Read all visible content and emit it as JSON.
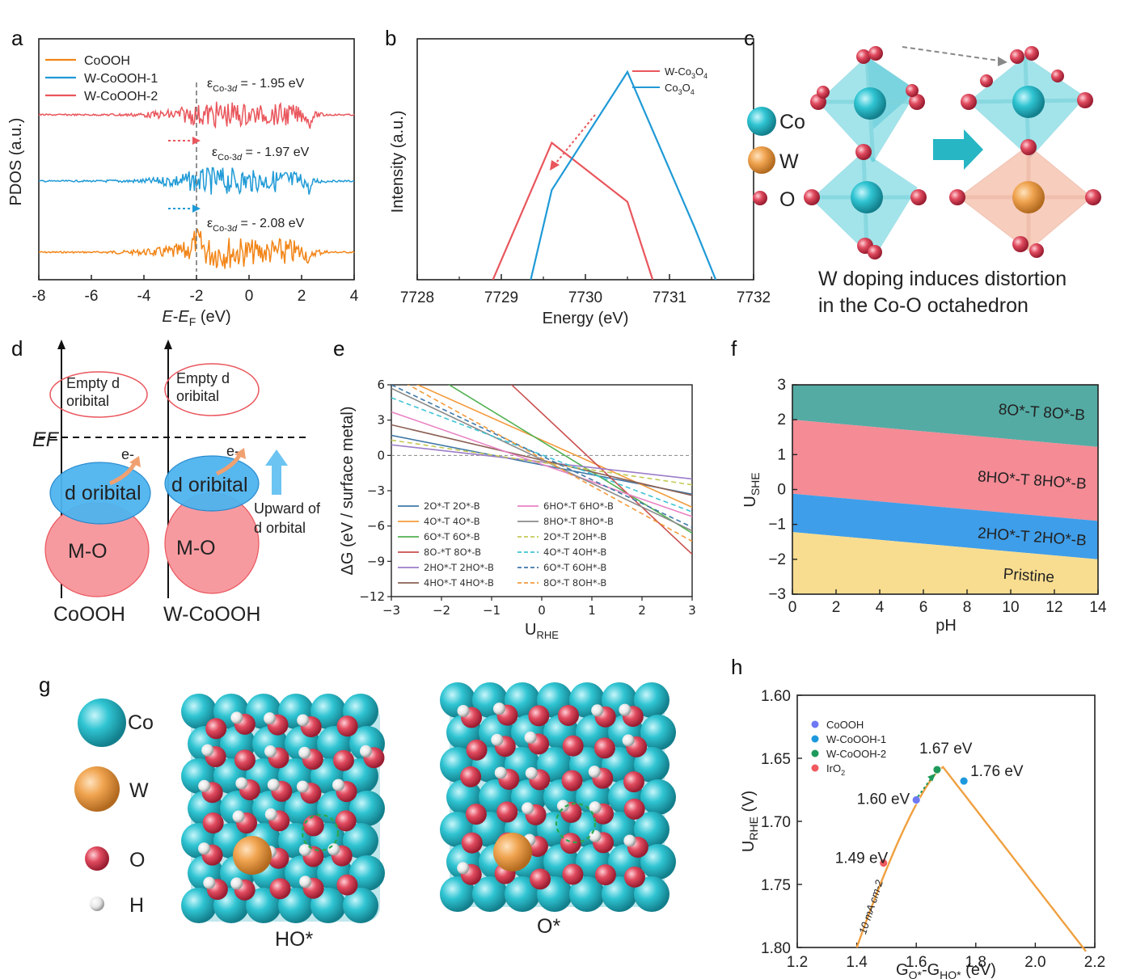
{
  "figure": {
    "panel_labels": [
      "a",
      "b",
      "c",
      "d",
      "e",
      "f",
      "g",
      "h"
    ]
  },
  "chart_data": [
    {
      "panel": "a",
      "type": "line",
      "ylabel": "PDOS (a.u.)",
      "xlabel": "E-EF (eV)",
      "xlim": [
        -8,
        4
      ],
      "xticks": [
        "-8",
        "-6",
        "-4",
        "-2",
        "0",
        "2",
        "4"
      ],
      "series": [
        {
          "name": "CoOOH",
          "color": "#f28518",
          "d_band_center_label": "εCo-3d = - 2.08 eV",
          "d_band_center": -2.08
        },
        {
          "name": "W-CoOOH-1",
          "color": "#1f9ad6",
          "d_band_center_label": "εCo-3d = - 1.97 eV",
          "d_band_center": -1.97
        },
        {
          "name": "W-CoOOH-2",
          "color": "#e9565c",
          "d_band_center_label": "εCo-3d = - 1.95 eV",
          "d_band_center": -1.95
        }
      ],
      "annotations": {
        "ref_line_x": -2
      }
    },
    {
      "panel": "b",
      "type": "line",
      "ylabel": "Intensity (a.u.)",
      "xlabel": "Energy (eV)",
      "xlim": [
        7728,
        7732
      ],
      "xticks": [
        "7728",
        "7729",
        "7730",
        "7731",
        "7732"
      ],
      "series": [
        {
          "name": "W-Co3O4",
          "color": "#e9565c",
          "x": [
            7728.9,
            7729.6,
            7730.5,
            7730.8
          ],
          "y": [
            0.0,
            0.58,
            0.33,
            0.0
          ]
        },
        {
          "name": "Co3O4",
          "color": "#1f9ad6",
          "x": [
            7729.35,
            7729.6,
            7730.5,
            7731.3,
            7731.55
          ],
          "y": [
            0.0,
            0.38,
            0.88,
            0.22,
            -0.05
          ]
        }
      ]
    },
    {
      "panel": "e",
      "type": "line",
      "ylabel": "ΔG (eV / surface metal)",
      "xlabel": "URHE",
      "xlim": [
        -3,
        3
      ],
      "ylim": [
        -12,
        6
      ],
      "xticks": [
        "−3",
        "−2",
        "−1",
        "0",
        "1",
        "2",
        "3"
      ],
      "yticks": [
        "−12",
        "−9",
        "−6",
        "−3",
        "0",
        "3",
        "6"
      ],
      "series": [
        {
          "name": "2O*-T 2O*-B",
          "color": "#3f78a8",
          "dash": false,
          "x": [
            -3,
            3
          ],
          "y": [
            1.7,
            -3.3
          ]
        },
        {
          "name": "4O*-T 4O*-B",
          "color": "#f39b3c",
          "dash": false,
          "x": [
            -3,
            3
          ],
          "y": [
            7.0,
            -4.4
          ]
        },
        {
          "name": "6O*-T 6O*-B",
          "color": "#52b152",
          "dash": false,
          "x": [
            -3,
            3
          ],
          "y": [
            9.0,
            -6.6
          ]
        },
        {
          "name": "8O-*T 8O*-B",
          "color": "#c9504f",
          "dash": false,
          "x": [
            -3,
            3
          ],
          "y": [
            15.6,
            -8.4
          ]
        },
        {
          "name": "2HO*-T 2HO*-B",
          "color": "#9c7cc8",
          "dash": false,
          "x": [
            -3,
            3
          ],
          "y": [
            0.9,
            -2.0
          ]
        },
        {
          "name": "4HO*-T 4HO*-B",
          "color": "#8c6054",
          "dash": false,
          "x": [
            -3,
            3
          ],
          "y": [
            2.6,
            -3.4
          ]
        },
        {
          "name": "6HO*-T 6HO*-B",
          "color": "#e982c4",
          "dash": false,
          "x": [
            -3,
            3
          ],
          "y": [
            3.7,
            -5.2
          ]
        },
        {
          "name": "8HO*-T 8HO*-B",
          "color": "#8a8a8a",
          "dash": false,
          "x": [
            -3,
            3
          ],
          "y": [
            5.7,
            -6.4
          ]
        },
        {
          "name": "2O*-T 2OH*-B",
          "color": "#c4c956",
          "dash": true,
          "x": [
            -3,
            3
          ],
          "y": [
            1.3,
            -2.5
          ]
        },
        {
          "name": "4O*-T 4OH*-B",
          "color": "#40c4d4",
          "dash": true,
          "x": [
            -3,
            3
          ],
          "y": [
            4.9,
            -4.8
          ]
        },
        {
          "name": "6O*-T 6OH*-B",
          "color": "#3f78a8",
          "dash": true,
          "x": [
            -3,
            3
          ],
          "y": [
            6.0,
            -6.1
          ]
        },
        {
          "name": "8O*-T 8OH*-B",
          "color": "#f39b3c",
          "dash": true,
          "x": [
            -3,
            3
          ],
          "y": [
            6.8,
            -7.3
          ]
        }
      ]
    },
    {
      "panel": "f",
      "type": "area",
      "ylabel": "USHE",
      "xlabel": "pH",
      "xlim": [
        0,
        14
      ],
      "ylim": [
        -3,
        3
      ],
      "xticks": [
        "0",
        "2",
        "4",
        "6",
        "8",
        "10",
        "12",
        "14"
      ],
      "yticks": [
        "−3",
        "−2",
        "−1",
        "0",
        "1",
        "2",
        "3"
      ],
      "regions": [
        {
          "name": "8O*-T 8O*-B",
          "color": "#54aba4"
        },
        {
          "name": "8HO*-T 8HO*-B",
          "color": "#f48b95"
        },
        {
          "name": "2HO*-T 2HO*-B",
          "color": "#3f9ee9"
        },
        {
          "name": "Pristine",
          "color": "#f8dd90"
        }
      ],
      "boundaries": [
        {
          "y_at_pH0": 2.0,
          "y_at_pH14": 1.22
        },
        {
          "y_at_pH0": -0.12,
          "y_at_pH14": -0.9
        },
        {
          "y_at_pH0": -1.22,
          "y_at_pH14": -2.0
        }
      ]
    },
    {
      "panel": "h",
      "type": "scatter",
      "ylabel": "URHE (V)",
      "xlabel": "GO*-GHO* (eV)",
      "xlim": [
        1.2,
        2.2
      ],
      "ylim": [
        1.6,
        1.8
      ],
      "y_inverted": true,
      "xticks": [
        "1.2",
        "1.4",
        "1.6",
        "1.8",
        "2.0",
        "2.2"
      ],
      "yticks": [
        "1.60",
        "1.65",
        "1.70",
        "1.75",
        "1.80"
      ],
      "curve_label": "10 mA cm-2",
      "points": [
        {
          "name": "CoOOH",
          "color": "#6f78f2",
          "x": 1.6,
          "y": 1.683,
          "label": "1.60 eV"
        },
        {
          "name": "W-CoOOH-1",
          "color": "#1e98dd",
          "x": 1.76,
          "y": 1.668,
          "label": "1.76 eV"
        },
        {
          "name": "W-CoOOH-2",
          "color": "#1d9a5b",
          "x": 1.67,
          "y": 1.659,
          "label": "1.67 eV"
        },
        {
          "name": "IrO2",
          "color": "#ef5a5e",
          "x": 1.49,
          "y": 1.733,
          "label": "1.49 eV"
        }
      ]
    }
  ],
  "panel_c": {
    "legend": [
      "Co",
      "W",
      "O"
    ],
    "caption_line1": "W doping induces distortion",
    "caption_line2": "in the Co-O octahedron"
  },
  "panel_d": {
    "ef_label": "EF",
    "left": {
      "empty": [
        "Empty d",
        "oribital"
      ],
      "d": "d oribital",
      "mo": "M-O",
      "name": "CoOOH"
    },
    "right": {
      "empty": [
        "Empty d",
        "oribital"
      ],
      "d": "d oribital",
      "mo": "M-O",
      "name": "W-CoOOH"
    },
    "electron": "e-",
    "upward": [
      "Upward of",
      "d orbital"
    ]
  },
  "panel_g": {
    "legend": [
      "Co",
      "W",
      "O",
      "H"
    ],
    "labels": [
      "HO*",
      "O*"
    ]
  },
  "colors": {
    "co": "#2fc4d2",
    "w": "#f0a450",
    "o": "#e04a5e",
    "h": "#e6e6e6"
  }
}
